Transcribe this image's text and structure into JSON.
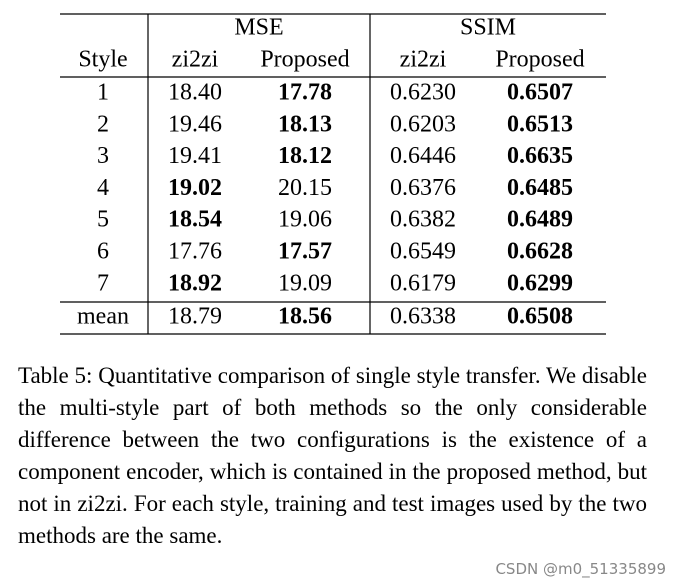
{
  "table": {
    "group_labels": [
      "MSE",
      "SSIM"
    ],
    "columns": [
      "Style",
      "zi2zi",
      "Proposed",
      "zi2zi",
      "Proposed"
    ],
    "rows": [
      {
        "cells": [
          "1",
          "18.40",
          "17.78",
          "0.6230",
          "0.6507"
        ],
        "bold": [
          2,
          4
        ]
      },
      {
        "cells": [
          "2",
          "19.46",
          "18.13",
          "0.6203",
          "0.6513"
        ],
        "bold": [
          2,
          4
        ]
      },
      {
        "cells": [
          "3",
          "19.41",
          "18.12",
          "0.6446",
          "0.6635"
        ],
        "bold": [
          2,
          4
        ]
      },
      {
        "cells": [
          "4",
          "19.02",
          "20.15",
          "0.6376",
          "0.6485"
        ],
        "bold": [
          1,
          4
        ]
      },
      {
        "cells": [
          "5",
          "18.54",
          "19.06",
          "0.6382",
          "0.6489"
        ],
        "bold": [
          1,
          4
        ]
      },
      {
        "cells": [
          "6",
          "17.76",
          "17.57",
          "0.6549",
          "0.6628"
        ],
        "bold": [
          2,
          4
        ]
      },
      {
        "cells": [
          "7",
          "18.92",
          "19.09",
          "0.6179",
          "0.6299"
        ],
        "bold": [
          1,
          4
        ]
      }
    ],
    "summary_row": {
      "cells": [
        "mean",
        "18.79",
        "18.56",
        "0.6338",
        "0.6508"
      ],
      "bold": [
        2,
        4
      ]
    }
  },
  "caption": "Table 5: Quantitative comparison of single style transfer. We disable the multi-style part of both methods so the only considerable difference between the two configurations is the existence of a component encoder, which is contained in the proposed method, but not in zi2zi. For each style, training and test images used by the two methods are the same.",
  "watermark": "CSDN @m0_51335899"
}
